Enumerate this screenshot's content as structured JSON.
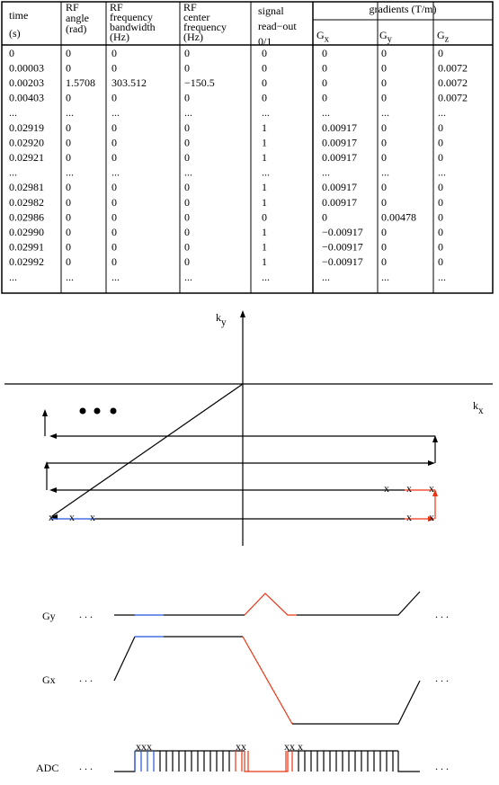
{
  "table": {
    "headers": [
      {
        "lines": [
          "time",
          "(s)"
        ]
      },
      {
        "lines": [
          "RF",
          "angle",
          "(rad)"
        ]
      },
      {
        "lines": [
          "RF",
          "frequency",
          "bandwidth",
          "(Hz)"
        ]
      },
      {
        "lines": [
          "RF",
          "center",
          "frequency",
          "(Hz)"
        ]
      },
      {
        "lines": [
          "signal",
          "read−out",
          "0/1"
        ]
      }
    ],
    "group_header": "gradients (T/m)",
    "gradient_headers": [
      {
        "symbol": "G",
        "subscript": "x"
      },
      {
        "symbol": "G",
        "subscript": "y"
      },
      {
        "symbol": "G",
        "subscript": "z"
      }
    ],
    "rows": [
      {
        "color": "#000000",
        "cells": [
          "0",
          "0",
          "0",
          "0",
          "0",
          "0",
          "0",
          "0"
        ]
      },
      {
        "color": "#000000",
        "cells": [
          "0.00003",
          "0",
          "0",
          "0",
          "0",
          "0",
          "0",
          "0.0072"
        ]
      },
      {
        "color": "#000000",
        "cells": [
          "0.00203",
          "1.5708",
          "303.512",
          "−150.5",
          "0",
          "0",
          "0",
          "0.0072"
        ]
      },
      {
        "color": "#000000",
        "cells": [
          "0.00403",
          "0",
          "0",
          "0",
          "0",
          "0",
          "0",
          "0.0072"
        ]
      },
      {
        "color": "#000000",
        "cells": [
          "...",
          "...",
          "...",
          "...",
          "...",
          "...",
          "...",
          "..."
        ]
      },
      {
        "color": "#2255dd",
        "cells": [
          "0.02919",
          "0",
          "0",
          "0",
          "1",
          "0.00917",
          "0",
          "0"
        ]
      },
      {
        "color": "#2255dd",
        "cells": [
          "0.02920",
          "0",
          "0",
          "0",
          "1",
          "0.00917",
          "0",
          "0"
        ]
      },
      {
        "color": "#2255dd",
        "cells": [
          "0.02921",
          "0",
          "0",
          "0",
          "1",
          "0.00917",
          "0",
          "0"
        ]
      },
      {
        "color": "#000000",
        "cells": [
          "...",
          "...",
          "...",
          "...",
          "...",
          "...",
          "...",
          "..."
        ]
      },
      {
        "color": "#ee3311",
        "cells": [
          "0.02981",
          "0",
          "0",
          "0",
          "1",
          "0.00917",
          "0",
          "0"
        ]
      },
      {
        "color": "#ee3311",
        "cells": [
          "0.02982",
          "0",
          "0",
          "0",
          "1",
          "0.00917",
          "0",
          "0"
        ]
      },
      {
        "color": "#ee3311",
        "cells": [
          "0.02986",
          "0",
          "0",
          "0",
          "0",
          "0",
          "0.00478",
          "0"
        ]
      },
      {
        "color": "#ee3311",
        "cells": [
          "0.02990",
          "0",
          "0",
          "0",
          "1",
          "−0.00917",
          "0",
          "0"
        ]
      },
      {
        "color": "#ee3311",
        "cells": [
          "0.02991",
          "0",
          "0",
          "0",
          "1",
          "−0.00917",
          "0",
          "0"
        ]
      },
      {
        "color": "#000000",
        "cells": [
          "0.02992",
          "0",
          "0",
          "0",
          "1",
          "−0.00917",
          "0",
          "0"
        ]
      },
      {
        "color": "#000000",
        "cells": [
          "...",
          "...",
          "...",
          "...",
          "...",
          "...",
          "...",
          "..."
        ]
      }
    ]
  },
  "kspace": {
    "ky": {
      "symbol": "k",
      "subscript": "y"
    },
    "kx": {
      "symbol": "k",
      "subscript": "x"
    },
    "sample_marker": "x"
  },
  "sequence": {
    "labels": [
      "Gy",
      "Gx",
      "ADC"
    ],
    "ellipsis": ". . .",
    "adc_markers": [
      "xxx",
      "xx",
      "xx",
      "x"
    ]
  }
}
